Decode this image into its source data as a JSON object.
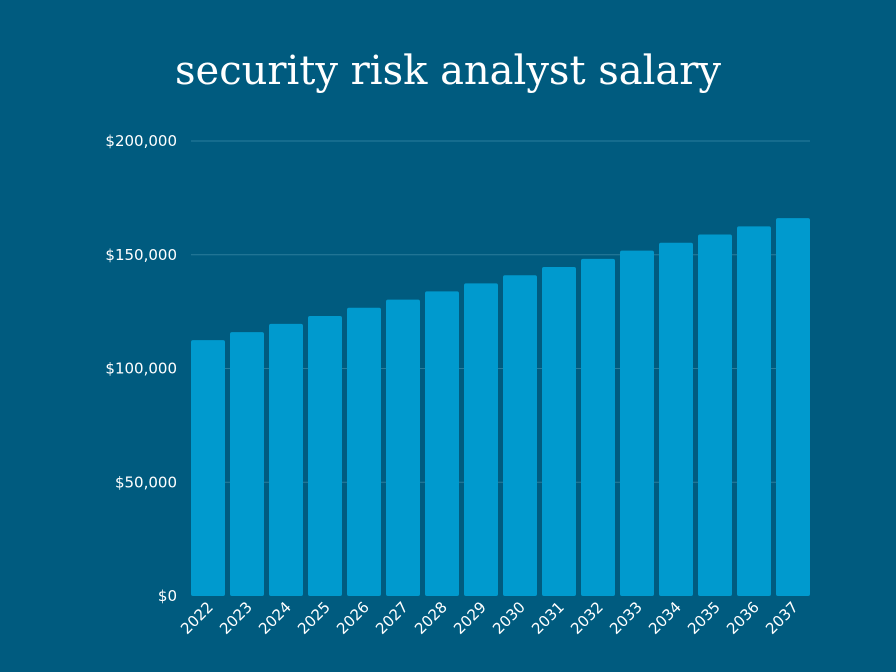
{
  "chart_data": {
    "type": "bar",
    "title": "security risk analyst salary",
    "xlabel": "",
    "ylabel": "",
    "categories": [
      "2022",
      "2023",
      "2024",
      "2025",
      "2026",
      "2027",
      "2028",
      "2029",
      "2030",
      "2031",
      "2032",
      "2033",
      "2034",
      "2035",
      "2036",
      "2037"
    ],
    "values": [
      112500,
      116000,
      119600,
      123100,
      126700,
      130300,
      133900,
      137400,
      141000,
      144600,
      148200,
      151800,
      155300,
      158900,
      162500,
      166100
    ],
    "ylim": [
      0,
      200000
    ],
    "yticks": [
      0,
      50000,
      100000,
      150000,
      200000
    ],
    "ytick_labels": [
      "$0",
      "$50,000",
      "$100,000",
      "$150,000",
      "$200,000"
    ],
    "grid": true,
    "colors": {
      "background": "#005b7f",
      "bar": "#009ace",
      "grid": "#2a7c9c",
      "text": "#ffffff"
    }
  }
}
